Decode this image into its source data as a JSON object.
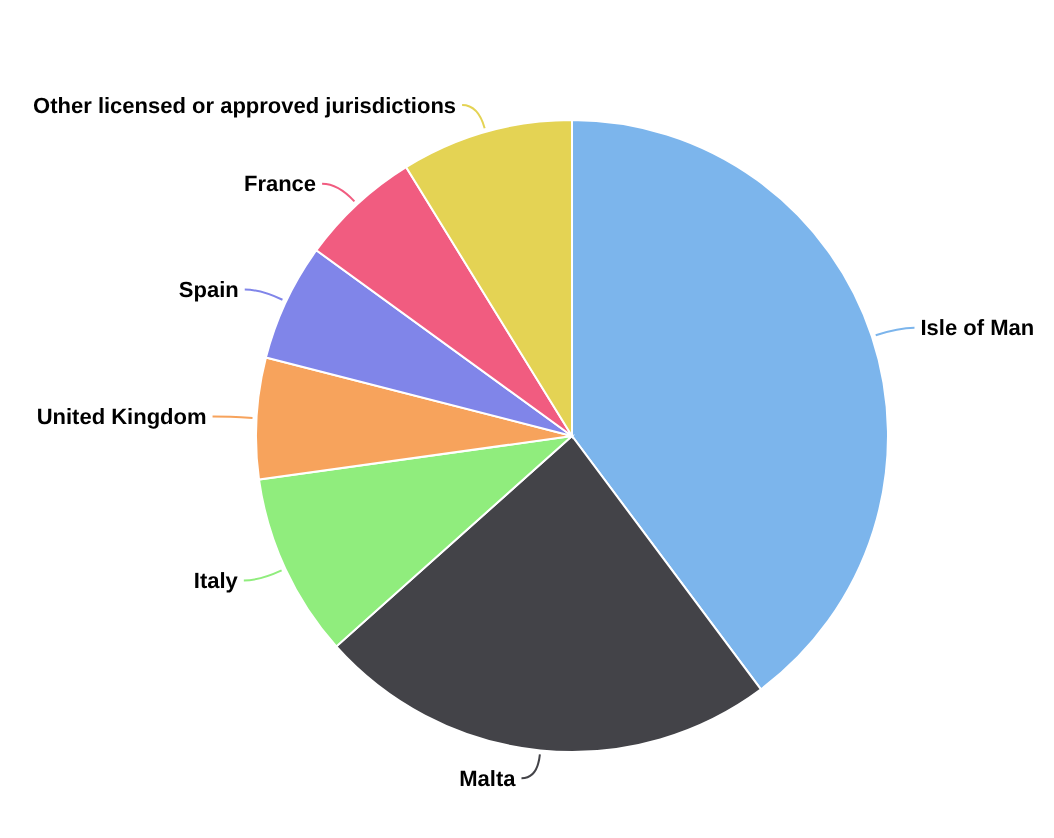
{
  "chart_data": {
    "type": "pie",
    "categories": [
      "Isle of Man",
      "Malta",
      "Italy",
      "United Kingdom",
      "Spain",
      "France",
      "Other licensed or approved jurisdictions"
    ],
    "values": [
      39.8,
      23.6,
      9.4,
      6.2,
      6,
      6.2,
      8.8
    ],
    "colors": [
      "#7cb5ec",
      "#434348",
      "#90ed7d",
      "#f7a35c",
      "#8085e9",
      "#f15c80",
      "#e4d354"
    ]
  }
}
